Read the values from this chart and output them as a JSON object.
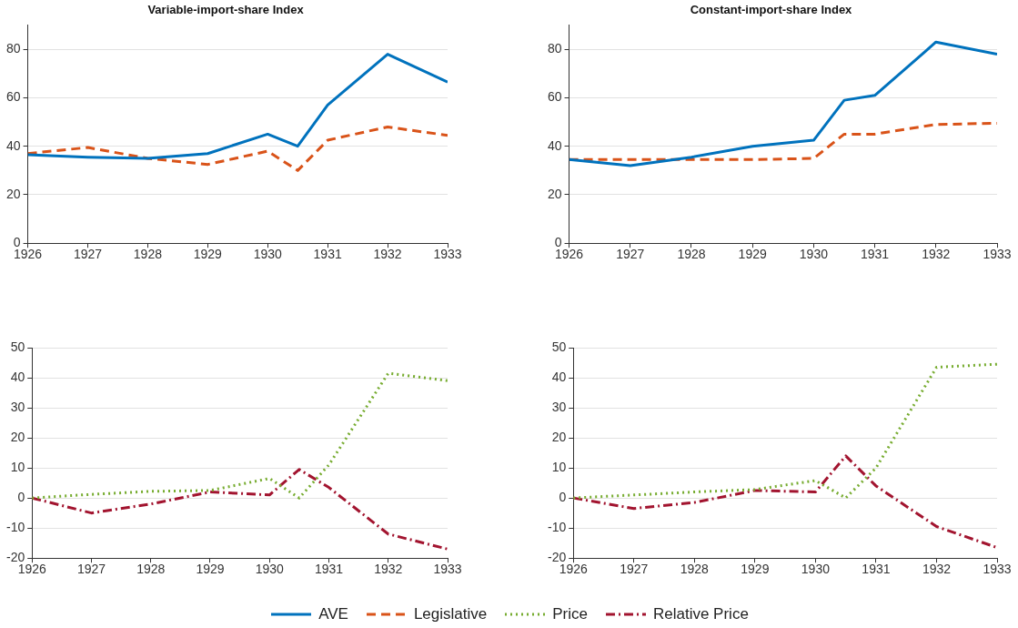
{
  "chart_data": [
    {
      "type": "line",
      "title": "Variable-import-share Index",
      "x": [
        1926,
        1927,
        1928,
        1929,
        1930,
        1930.5,
        1931,
        1932,
        1933
      ],
      "xlim": [
        1926,
        1933
      ],
      "xticks": [
        1926,
        1927,
        1928,
        1929,
        1930,
        1931,
        1932,
        1933
      ],
      "ylim": [
        0,
        90
      ],
      "yticks": [
        0,
        20,
        40,
        60,
        80
      ],
      "grid": "y",
      "legend": "bottom",
      "series": [
        {
          "name": "AVE",
          "color": "#0072bd",
          "line_style": "solid",
          "values": [
            36.5,
            35.5,
            35,
            37,
            45,
            40,
            57,
            78,
            66.5
          ]
        },
        {
          "name": "Legislative",
          "color": "#d95319",
          "line_style": "dashed",
          "values": [
            37,
            39.5,
            35,
            32.5,
            38,
            30,
            42.5,
            48,
            44.5
          ]
        }
      ]
    },
    {
      "type": "line",
      "title": "Constant-import-share Index",
      "x": [
        1926,
        1927,
        1928,
        1929,
        1930,
        1930.5,
        1931,
        1932,
        1933
      ],
      "xlim": [
        1926,
        1933
      ],
      "xticks": [
        1926,
        1927,
        1928,
        1929,
        1930,
        1931,
        1932,
        1933
      ],
      "ylim": [
        0,
        90
      ],
      "yticks": [
        0,
        20,
        40,
        60,
        80
      ],
      "grid": "y",
      "legend": "bottom",
      "series": [
        {
          "name": "AVE",
          "color": "#0072bd",
          "line_style": "solid",
          "values": [
            34.5,
            32,
            35.5,
            40,
            42.5,
            59,
            61,
            83,
            78
          ]
        },
        {
          "name": "Legislative",
          "color": "#d95319",
          "line_style": "dashed",
          "values": [
            34.5,
            34.5,
            34.5,
            34.5,
            35,
            45,
            45,
            49,
            49.5
          ]
        }
      ]
    },
    {
      "type": "line",
      "x": [
        1926,
        1927,
        1928,
        1929,
        1930,
        1930.5,
        1931,
        1932,
        1933
      ],
      "xlim": [
        1926,
        1933
      ],
      "xticks": [
        1926,
        1927,
        1928,
        1929,
        1930,
        1931,
        1932,
        1933
      ],
      "ylim": [
        -20,
        50
      ],
      "yticks": [
        -20,
        -10,
        0,
        10,
        20,
        30,
        40,
        50
      ],
      "grid": "y",
      "legend": "bottom",
      "series": [
        {
          "name": "Price",
          "color": "#77ac30",
          "line_style": "dotted",
          "values": [
            0,
            1.2,
            2.2,
            2.5,
            6.5,
            0,
            11,
            41.5,
            39
          ]
        },
        {
          "name": "Relative Price",
          "color": "#a2142f",
          "line_style": "dashdot",
          "values": [
            0,
            -5,
            -2,
            2,
            1,
            9.5,
            3.5,
            -12,
            -17
          ]
        }
      ]
    },
    {
      "type": "line",
      "x": [
        1926,
        1927,
        1928,
        1929,
        1930,
        1930.5,
        1931,
        1932,
        1933
      ],
      "xlim": [
        1926,
        1933
      ],
      "xticks": [
        1926,
        1927,
        1928,
        1929,
        1930,
        1931,
        1932,
        1933
      ],
      "ylim": [
        -20,
        50
      ],
      "yticks": [
        -20,
        -10,
        0,
        10,
        20,
        30,
        40,
        50
      ],
      "grid": "y",
      "legend": "bottom",
      "series": [
        {
          "name": "Price",
          "color": "#77ac30",
          "line_style": "dotted",
          "values": [
            0,
            1,
            2,
            2.8,
            5.8,
            0,
            10,
            43.5,
            44.5
          ]
        },
        {
          "name": "Relative Price",
          "color": "#a2142f",
          "line_style": "dashdot",
          "values": [
            0,
            -3.5,
            -1.5,
            2.5,
            2,
            14,
            4,
            -9.5,
            -16.5
          ]
        }
      ]
    }
  ]
}
